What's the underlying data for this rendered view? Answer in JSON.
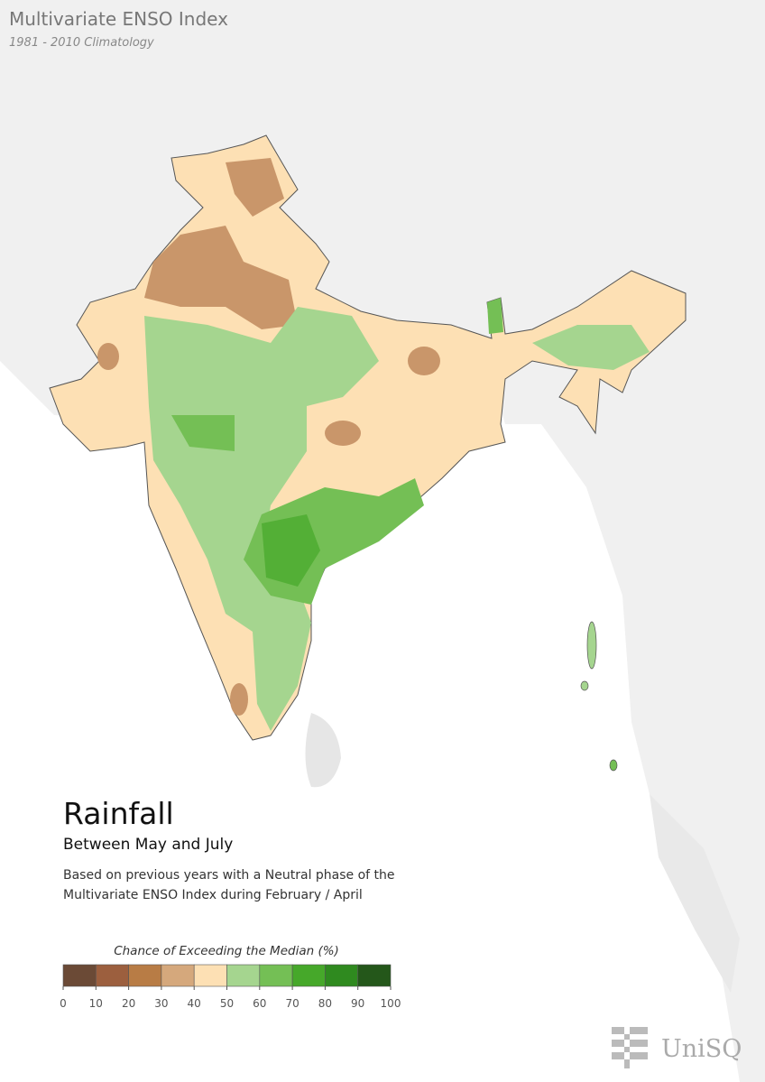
{
  "header": {
    "title": "Multivariate ENSO Index",
    "subtitle": "1981 - 2010 Climatology"
  },
  "caption": {
    "heading": "Rainfall",
    "period": "Between May and July",
    "description": [
      "Based on previous years with a Neutral phase of the",
      "Multivariate ENSO Index during February / April"
    ]
  },
  "legend": {
    "title": "Chance of Exceeding the Median (%)",
    "bins": [
      0,
      10,
      20,
      30,
      40,
      50,
      60,
      70,
      80,
      90,
      100
    ],
    "colors": [
      "#6b4a36",
      "#9c5f3e",
      "#b87c45",
      "#d5a87c",
      "#fde0b4",
      "#a5d58f",
      "#74bf55",
      "#46a82a",
      "#2f8a1f",
      "#24571a"
    ]
  },
  "logo": {
    "text": "UniSQ"
  }
}
